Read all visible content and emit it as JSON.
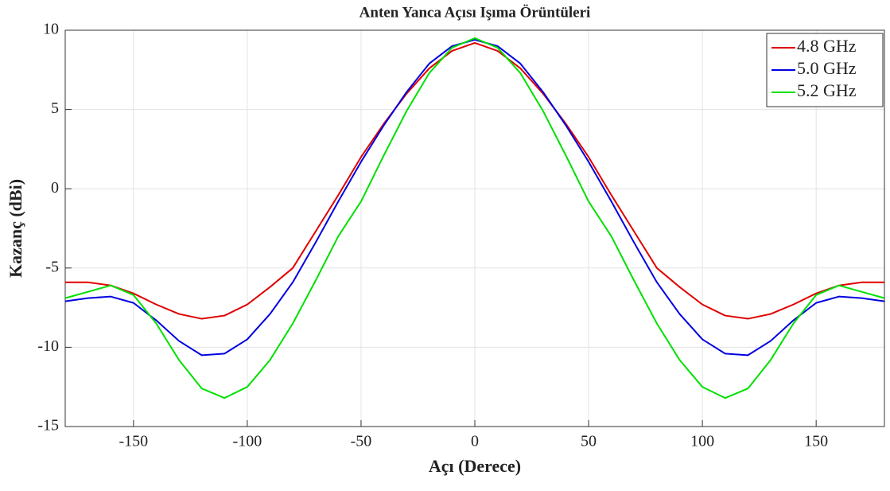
{
  "chart_data": {
    "type": "line",
    "title": "Anten Yanca Açısı Işıma Örüntüleri",
    "x_label": "Açı (Derece)",
    "y_label": "Kazanç (dBi)",
    "x": [
      -180,
      -170,
      -160,
      -150,
      -140,
      -130,
      -120,
      -110,
      -100,
      -90,
      -80,
      -70,
      -60,
      -50,
      -40,
      -30,
      -20,
      -10,
      0,
      10,
      20,
      30,
      40,
      50,
      60,
      70,
      80,
      90,
      100,
      110,
      120,
      130,
      140,
      150,
      160,
      170,
      180
    ],
    "series": [
      {
        "name": "4.8 GHz",
        "color": "#e00000",
        "values": [
          -5.9,
          -5.9,
          -6.1,
          -6.6,
          -7.3,
          -7.9,
          -8.2,
          -8.0,
          -7.3,
          -6.2,
          -5.0,
          -2.7,
          -0.4,
          2.0,
          4.1,
          6.0,
          7.6,
          8.7,
          9.2,
          8.7,
          7.6,
          6.0,
          4.1,
          2.0,
          -0.4,
          -2.7,
          -5.0,
          -6.2,
          -7.3,
          -8.0,
          -8.2,
          -7.9,
          -7.3,
          -6.6,
          -6.1,
          -5.9,
          -5.9
        ]
      },
      {
        "name": "5.0 GHz",
        "color": "#0000e0",
        "values": [
          -7.1,
          -6.9,
          -6.8,
          -7.2,
          -8.3,
          -9.6,
          -10.5,
          -10.4,
          -9.5,
          -7.9,
          -5.9,
          -3.4,
          -0.8,
          1.7,
          4.0,
          6.1,
          7.9,
          9.0,
          9.4,
          9.0,
          7.9,
          6.1,
          4.0,
          1.7,
          -0.8,
          -3.4,
          -5.9,
          -7.9,
          -9.5,
          -10.4,
          -10.5,
          -9.6,
          -8.3,
          -7.2,
          -6.8,
          -6.9,
          -7.1
        ]
      },
      {
        "name": "5.2 GHz",
        "color": "#00e000",
        "values": [
          -6.9,
          -6.5,
          -6.1,
          -6.7,
          -8.5,
          -10.8,
          -12.6,
          -13.2,
          -12.5,
          -10.8,
          -8.5,
          -5.8,
          -3.0,
          -0.8,
          2.1,
          4.9,
          7.3,
          8.9,
          9.5,
          8.9,
          7.3,
          4.9,
          2.1,
          -0.8,
          -3.0,
          -5.8,
          -8.5,
          -10.8,
          -12.5,
          -13.2,
          -12.6,
          -10.8,
          -8.5,
          -6.7,
          -6.1,
          -6.5,
          -6.9
        ]
      }
    ],
    "xlim": [
      -180,
      180
    ],
    "xticks": [
      -150,
      -100,
      -50,
      0,
      50,
      100,
      150
    ],
    "ylim": [
      -15,
      10
    ],
    "yticks": [
      -15,
      -10,
      -5,
      0,
      5,
      10
    ],
    "grid": true,
    "legend": "upper-right"
  }
}
